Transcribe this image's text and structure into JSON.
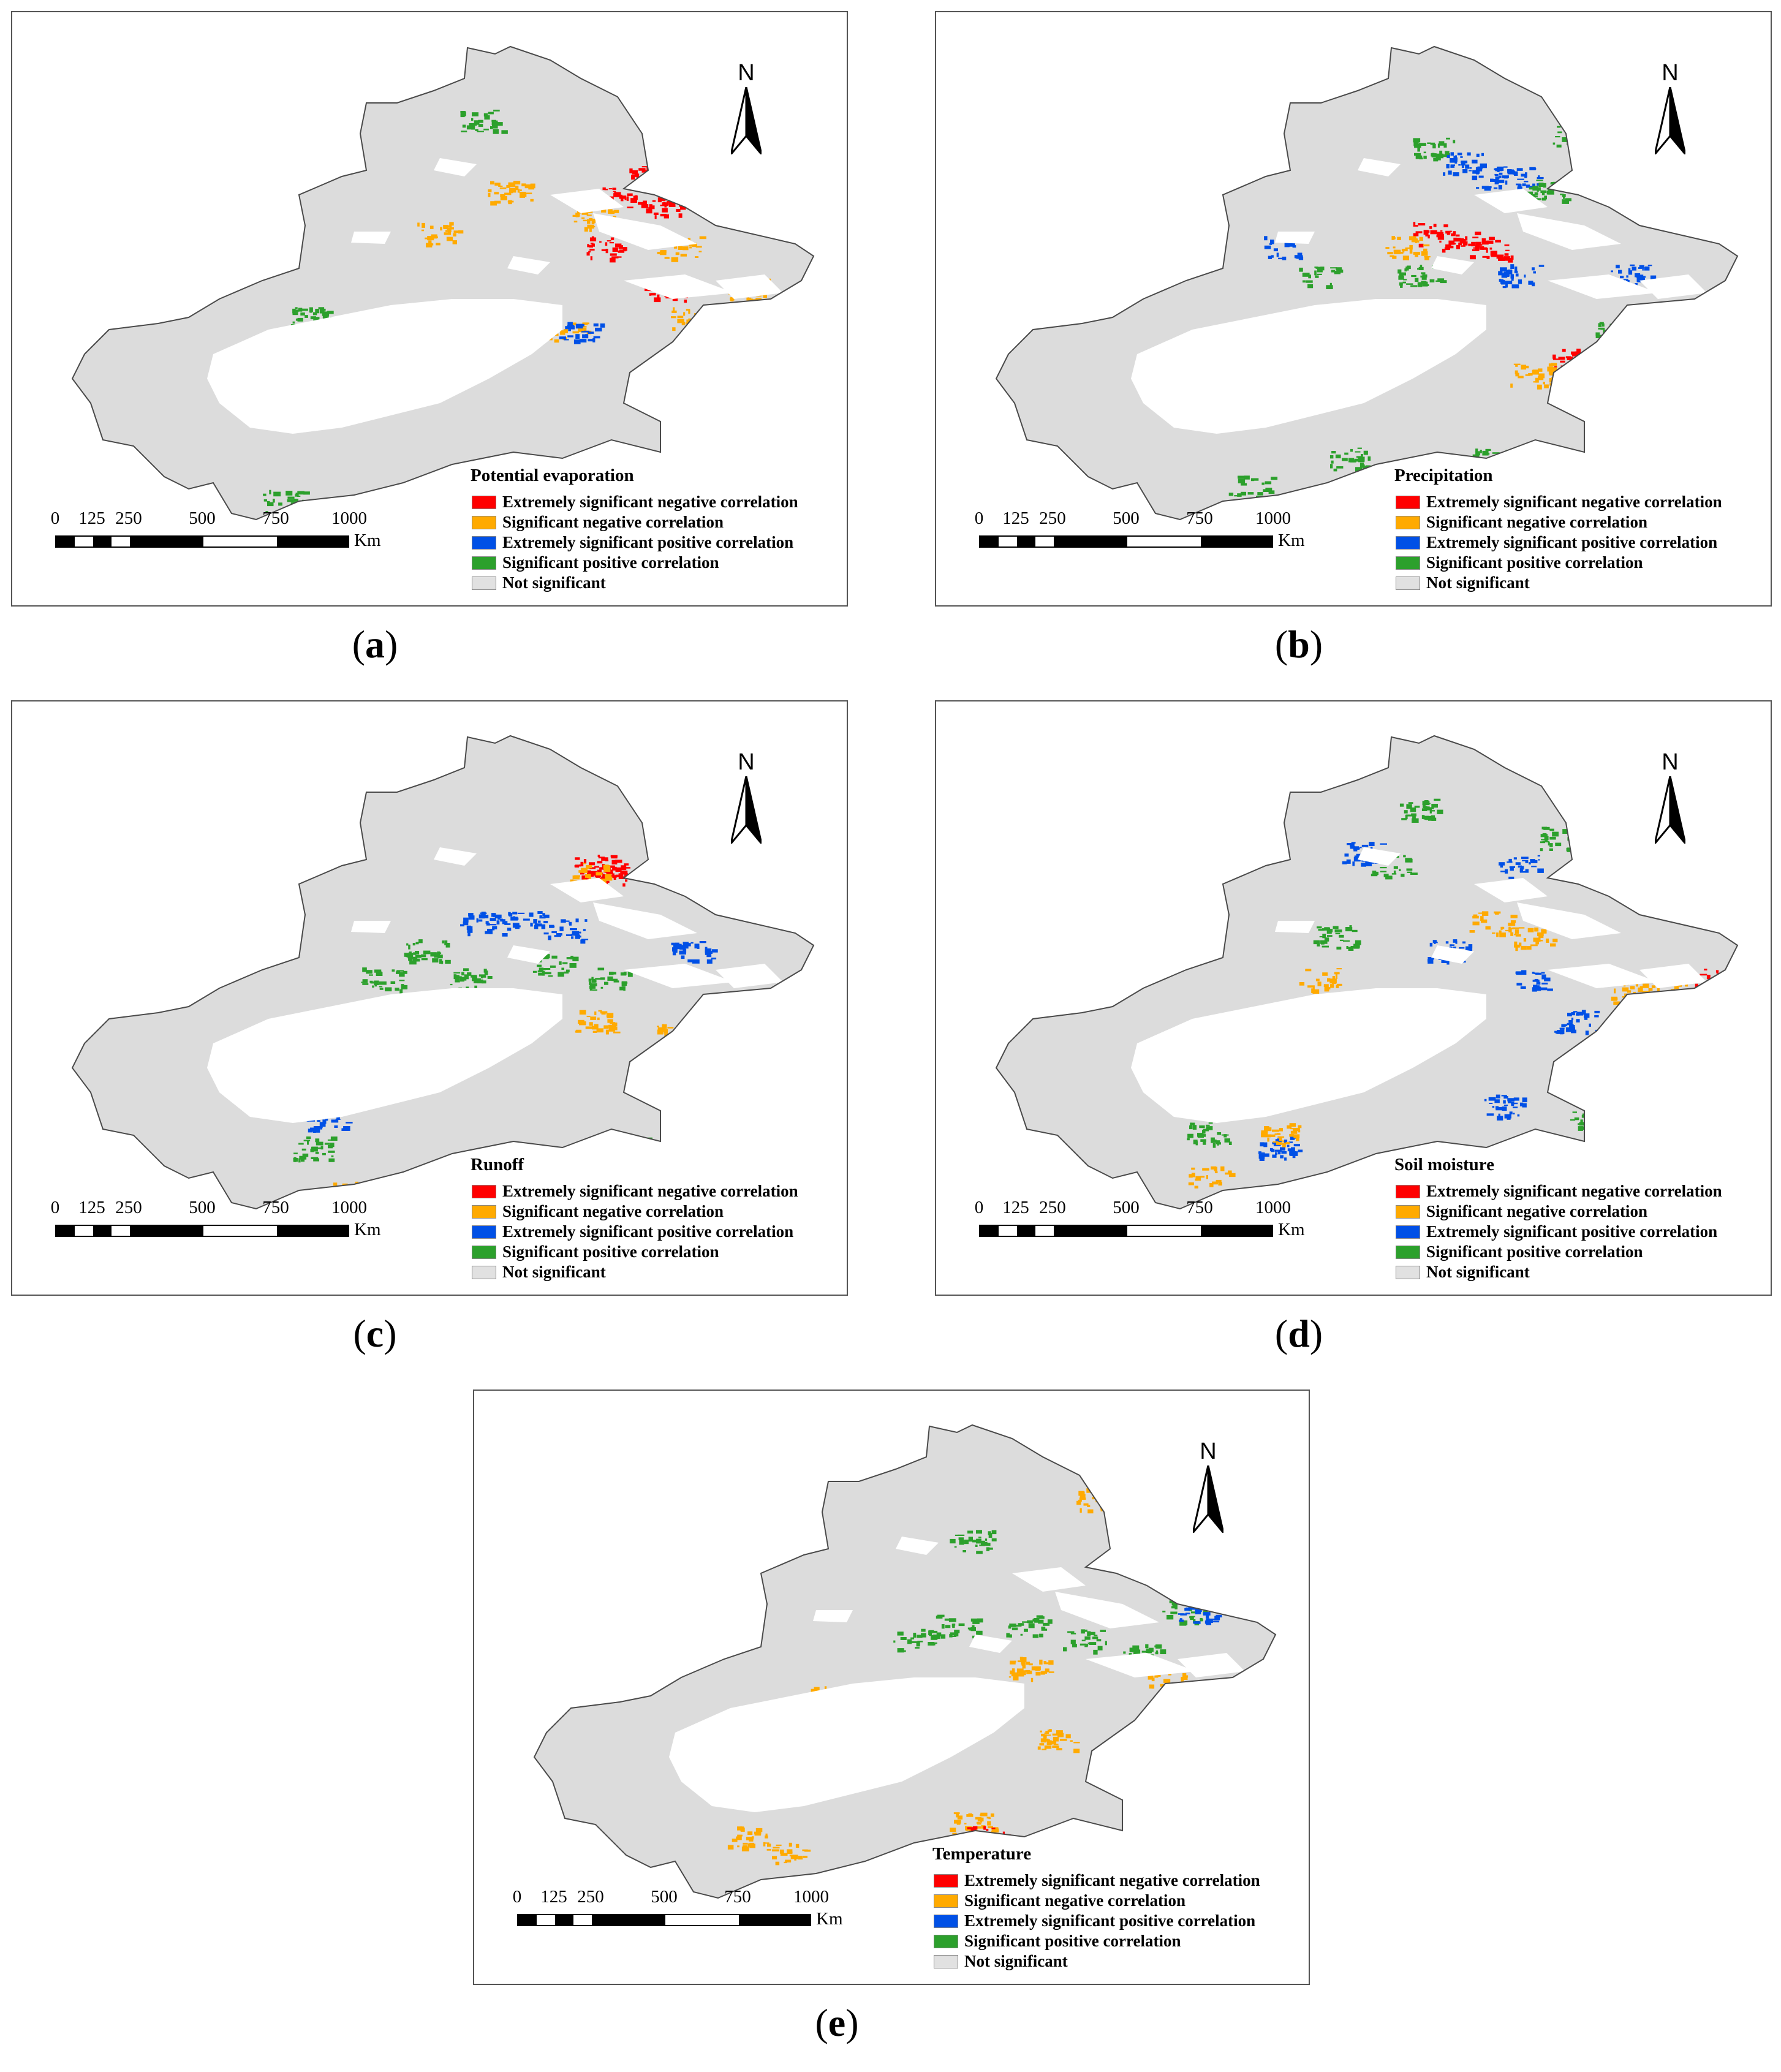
{
  "panels": [
    {
      "caption_letter": "a",
      "title": "Potential evaporation",
      "patches": [
        {
          "class": "extremely_negative",
          "spots": [
            [
              0.82,
              0.2
            ],
            [
              0.84,
              0.24
            ],
            [
              0.78,
              0.23
            ],
            [
              0.84,
              0.36
            ],
            [
              0.76,
              0.3
            ],
            [
              0.74,
              0.6
            ],
            [
              0.83,
              0.64
            ],
            [
              0.85,
              0.68
            ],
            [
              1.03,
              0.4
            ],
            [
              0.8,
              0.66
            ]
          ]
        },
        {
          "class": "significant_negative",
          "spots": [
            [
              0.74,
              0.26
            ],
            [
              0.86,
              0.3
            ],
            [
              0.88,
              0.4
            ],
            [
              0.7,
              0.62
            ],
            [
              0.76,
              0.68
            ],
            [
              0.9,
              0.66
            ],
            [
              0.62,
              0.22
            ],
            [
              0.96,
              0.36
            ],
            [
              0.7,
              0.42
            ],
            [
              0.4,
              0.7
            ],
            [
              0.52,
              0.28
            ],
            [
              0.94,
              0.22
            ]
          ]
        },
        {
          "class": "significant_positive",
          "spots": [
            [
              0.34,
              0.4
            ],
            [
              0.3,
              0.66
            ],
            [
              0.58,
              0.12
            ],
            [
              0.52,
              0.46
            ],
            [
              0.28,
              0.52
            ],
            [
              0.6,
              0.44
            ],
            [
              0.66,
              0.66
            ],
            [
              0.44,
              0.48
            ]
          ]
        },
        {
          "class": "extremely_positive",
          "spots": [
            [
              0.72,
              0.42
            ],
            [
              0.56,
              0.66
            ]
          ]
        }
      ]
    },
    {
      "caption_letter": "b",
      "title": "Precipitation",
      "patches": [
        {
          "class": "extremely_positive",
          "spots": [
            [
              0.66,
              0.18
            ],
            [
              0.74,
              0.2
            ],
            [
              0.9,
              0.34
            ],
            [
              0.74,
              0.34
            ],
            [
              0.4,
              0.3
            ],
            [
              0.7,
              0.2
            ]
          ]
        },
        {
          "class": "significant_positive",
          "spots": [
            [
              0.62,
              0.16
            ],
            [
              0.78,
              0.22
            ],
            [
              0.82,
              0.14
            ],
            [
              0.46,
              0.34
            ],
            [
              0.52,
              0.4
            ],
            [
              0.3,
              0.52
            ],
            [
              0.36,
              0.64
            ],
            [
              0.5,
              0.6
            ],
            [
              0.86,
              0.2
            ],
            [
              0.6,
              0.34
            ],
            [
              0.88,
              0.42
            ],
            [
              0.44,
              0.44
            ],
            [
              0.7,
              0.6
            ]
          ]
        },
        {
          "class": "extremely_negative",
          "spots": [
            [
              0.62,
              0.28
            ],
            [
              0.66,
              0.29
            ],
            [
              0.7,
              0.3
            ],
            [
              0.82,
              0.46
            ],
            [
              1.0,
              0.44
            ],
            [
              0.46,
              0.46
            ],
            [
              0.56,
              0.66
            ],
            [
              0.92,
              0.46
            ]
          ]
        },
        {
          "class": "significant_negative",
          "spots": [
            [
              0.58,
              0.3
            ],
            [
              0.76,
              0.48
            ],
            [
              0.88,
              0.48
            ],
            [
              0.4,
              0.72
            ]
          ]
        }
      ]
    },
    {
      "caption_letter": "c",
      "title": "Runoff",
      "patches": [
        {
          "class": "extremely_negative",
          "spots": [
            [
              0.74,
              0.2
            ],
            [
              0.76,
              0.21
            ]
          ]
        },
        {
          "class": "significant_negative",
          "spots": [
            [
              0.73,
              0.21
            ],
            [
              0.64,
              0.4
            ],
            [
              0.74,
              0.42
            ],
            [
              0.86,
              0.44
            ],
            [
              0.5,
              0.72
            ],
            [
              0.4,
              0.66
            ],
            [
              0.3,
              0.7
            ],
            [
              0.66,
              0.7
            ]
          ]
        },
        {
          "class": "extremely_positive",
          "spots": [
            [
              0.58,
              0.28
            ],
            [
              0.64,
              0.28
            ],
            [
              0.7,
              0.29
            ],
            [
              0.88,
              0.32
            ],
            [
              0.84,
              0.66
            ],
            [
              0.46,
              0.42
            ],
            [
              0.36,
              0.56
            ],
            [
              1.02,
              0.4
            ]
          ]
        },
        {
          "class": "significant_positive",
          "spots": [
            [
              0.5,
              0.32
            ],
            [
              0.56,
              0.36
            ],
            [
              0.62,
              0.4
            ],
            [
              0.76,
              0.36
            ],
            [
              0.92,
              0.4
            ],
            [
              0.34,
              0.6
            ],
            [
              0.3,
              0.5
            ],
            [
              0.86,
              0.52
            ],
            [
              0.8,
              0.6
            ],
            [
              0.44,
              0.36
            ],
            [
              0.68,
              0.34
            ]
          ]
        }
      ]
    },
    {
      "caption_letter": "d",
      "title": "Soil moisture",
      "patches": [
        {
          "class": "extremely_positive",
          "spots": [
            [
              0.52,
              0.18
            ],
            [
              0.74,
              0.2
            ],
            [
              0.76,
              0.36
            ],
            [
              0.82,
              0.42
            ],
            [
              0.86,
              0.46
            ],
            [
              1.04,
              0.42
            ],
            [
              0.64,
              0.32
            ],
            [
              0.4,
              0.6
            ],
            [
              0.72,
              0.54
            ]
          ]
        },
        {
          "class": "significant_positive",
          "spots": [
            [
              0.56,
              0.2
            ],
            [
              0.8,
              0.16
            ],
            [
              0.48,
              0.3
            ],
            [
              0.62,
              0.4
            ],
            [
              0.36,
              0.5
            ],
            [
              0.3,
              0.58
            ],
            [
              0.7,
              0.66
            ],
            [
              0.84,
              0.56
            ],
            [
              0.94,
              0.5
            ],
            [
              0.6,
              0.12
            ]
          ]
        },
        {
          "class": "significant_negative",
          "spots": [
            [
              0.7,
              0.28
            ],
            [
              0.76,
              0.3
            ],
            [
              0.3,
              0.64
            ],
            [
              0.4,
              0.58
            ],
            [
              0.9,
              0.38
            ],
            [
              0.46,
              0.36
            ],
            [
              0.96,
              0.36
            ],
            [
              0.8,
              0.7
            ]
          ]
        },
        {
          "class": "extremely_negative",
          "spots": [
            [
              1.02,
              0.36
            ]
          ]
        }
      ]
    },
    {
      "caption_letter": "e",
      "title": "Temperature",
      "patches": [
        {
          "class": "significant_negative",
          "spots": [
            [
              0.62,
              0.58
            ],
            [
              0.66,
              0.62
            ],
            [
              0.72,
              0.62
            ],
            [
              0.78,
              0.62
            ],
            [
              0.84,
              0.64
            ],
            [
              0.9,
              0.66
            ],
            [
              0.96,
              0.68
            ],
            [
              0.52,
              0.64
            ],
            [
              0.44,
              0.66
            ],
            [
              0.36,
              0.62
            ],
            [
              0.3,
              0.6
            ],
            [
              0.42,
              0.4
            ],
            [
              0.6,
              0.4
            ],
            [
              0.7,
              0.36
            ],
            [
              0.8,
              0.12
            ],
            [
              0.9,
              0.38
            ],
            [
              0.74,
              0.46
            ],
            [
              0.5,
              0.44
            ]
          ]
        },
        {
          "class": "extremely_negative",
          "spots": [
            [
              0.64,
              0.6
            ],
            [
              0.7,
              0.63
            ],
            [
              0.82,
              0.64
            ]
          ]
        },
        {
          "class": "significant_positive",
          "spots": [
            [
              0.62,
              0.18
            ],
            [
              0.6,
              0.3
            ],
            [
              0.7,
              0.3
            ],
            [
              0.78,
              0.32
            ],
            [
              0.86,
              0.34
            ],
            [
              0.98,
              0.4
            ],
            [
              0.54,
              0.32
            ],
            [
              0.92,
              0.28
            ]
          ]
        },
        {
          "class": "extremely_positive",
          "spots": [
            [
              0.94,
              0.28
            ]
          ]
        }
      ]
    }
  ],
  "legend_items": [
    {
      "key": "extremely_negative",
      "label": "Extremely significant negative correlation",
      "color": "#ff0000"
    },
    {
      "key": "significant_negative",
      "label": "Significant negative correlation",
      "color": "#ffaa00"
    },
    {
      "key": "extremely_positive",
      "label": "Extremely significant positive  correlation",
      "color": "#0050e6"
    },
    {
      "key": "significant_positive",
      "label": "Significant positive  correlation",
      "color": "#2ca02c"
    },
    {
      "key": "not_significant",
      "label": "Not significant",
      "color": "#e1e1e1"
    }
  ],
  "scale_bar": {
    "ticks": [
      "0",
      "125",
      "250",
      "500",
      "750",
      "1000"
    ],
    "unit": "Km"
  },
  "north_label": "N",
  "caption_parens": {
    "open": "(",
    "close": ")"
  },
  "colors": {
    "region_fill": "#dcdcdc",
    "region_outline": "#4a4a4a",
    "desert": "#ffffff"
  }
}
